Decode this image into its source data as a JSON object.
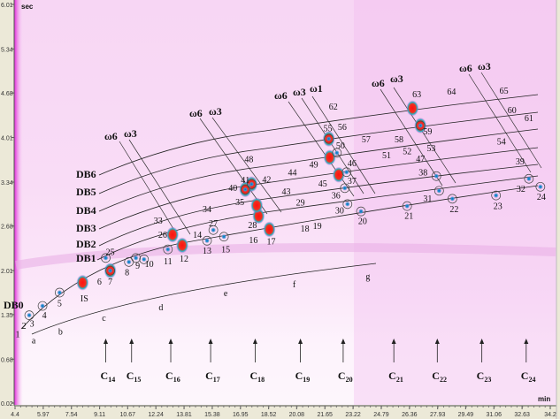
{
  "chart_data": {
    "type": "scatter",
    "title": "",
    "xlabel": "min",
    "ylabel": "sec",
    "xlim": [
      4.4,
      34.2
    ],
    "ylim": [
      0.02,
      6.01
    ],
    "x_ticks": [
      "4.4",
      "5.97",
      "7.54",
      "9.11",
      "10.67",
      "12.24",
      "13.81",
      "15.38",
      "16.95",
      "18.52",
      "20.08",
      "21.65",
      "23.22",
      "24.79",
      "26.36",
      "27.93",
      "29.49",
      "31.06",
      "32.63",
      "34.2"
    ],
    "y_ticks": [
      "6.01",
      "5.34",
      "4.68",
      "4.01",
      "3.34",
      "2.68",
      "2.01",
      "1.35",
      "0.68",
      "0.02"
    ],
    "peaks": [
      {
        "id": "1",
        "rt1": 4.55,
        "rt2": 1.06
      },
      {
        "id": "2",
        "rt1": 4.9,
        "rt2": 1.19
      },
      {
        "id": "3",
        "rt1": 5.34,
        "rt2": 1.22
      },
      {
        "id": "4",
        "rt1": 6.03,
        "rt2": 1.35
      },
      {
        "id": "5",
        "rt1": 6.88,
        "rt2": 1.53
      },
      {
        "id": "IS",
        "rt1": 8.26,
        "rt2": 1.6
      },
      {
        "id": "6",
        "rt1": 9.1,
        "rt2": 1.85
      },
      {
        "id": "7",
        "rt1": 9.7,
        "rt2": 1.85
      },
      {
        "id": "8",
        "rt1": 10.64,
        "rt2": 1.99
      },
      {
        "id": "9",
        "rt1": 11.23,
        "rt2": 2.09
      },
      {
        "id": "10",
        "rt1": 11.87,
        "rt2": 2.12
      },
      {
        "id": "11",
        "rt1": 12.91,
        "rt2": 2.16
      },
      {
        "id": "12",
        "rt1": 13.81,
        "rt2": 2.2
      },
      {
        "id": "13",
        "rt1": 15.09,
        "rt2": 2.32
      },
      {
        "id": "14",
        "rt1": 14.55,
        "rt2": 2.56
      },
      {
        "id": "15",
        "rt1": 16.13,
        "rt2": 2.34
      },
      {
        "id": "16",
        "rt1": 17.67,
        "rt2": 2.48
      },
      {
        "id": "17",
        "rt1": 18.66,
        "rt2": 2.46
      },
      {
        "id": "18",
        "rt1": 20.54,
        "rt2": 2.65
      },
      {
        "id": "19",
        "rt1": 21.23,
        "rt2": 2.69
      },
      {
        "id": "20",
        "rt1": 23.75,
        "rt2": 2.76
      },
      {
        "id": "21",
        "rt1": 26.33,
        "rt2": 2.84
      },
      {
        "id": "22",
        "rt1": 28.85,
        "rt2": 2.94
      },
      {
        "id": "23",
        "rt1": 31.28,
        "rt2": 2.99
      },
      {
        "id": "24",
        "rt1": 33.7,
        "rt2": 3.13
      },
      {
        "id": "25",
        "rt1": 9.7,
        "rt2": 2.3
      },
      {
        "id": "26",
        "rt1": 12.62,
        "rt2": 2.56
      },
      {
        "id": "27",
        "rt1": 15.44,
        "rt2": 2.73
      },
      {
        "id": "28",
        "rt1": 17.62,
        "rt2": 2.7
      },
      {
        "id": "29",
        "rt1": 20.29,
        "rt2": 3.04
      },
      {
        "id": "30",
        "rt1": 22.47,
        "rt2": 2.92
      },
      {
        "id": "31",
        "rt1": 27.37,
        "rt2": 3.1
      },
      {
        "id": "32",
        "rt1": 32.57,
        "rt2": 3.25
      },
      {
        "id": "33",
        "rt1": 12.37,
        "rt2": 2.77
      },
      {
        "id": "34",
        "rt1": 15.09,
        "rt2": 2.94
      },
      {
        "id": "35",
        "rt1": 16.92,
        "rt2": 3.05
      },
      {
        "id": "36",
        "rt1": 22.27,
        "rt2": 3.15
      },
      {
        "id": "37",
        "rt1": 23.16,
        "rt2": 3.37
      },
      {
        "id": "38",
        "rt1": 27.12,
        "rt2": 3.49
      },
      {
        "id": "39",
        "rt1": 32.52,
        "rt2": 3.66
      },
      {
        "id": "40",
        "rt1": 16.53,
        "rt2": 3.26
      },
      {
        "id": "41",
        "rt1": 17.22,
        "rt2": 3.38
      },
      {
        "id": "42",
        "rt1": 18.41,
        "rt2": 3.39
      },
      {
        "id": "43",
        "rt1": 19.5,
        "rt2": 3.21
      },
      {
        "id": "44",
        "rt1": 19.84,
        "rt2": 3.49
      },
      {
        "id": "45",
        "rt1": 21.53,
        "rt2": 3.33
      },
      {
        "id": "46",
        "rt1": 23.16,
        "rt2": 3.63
      },
      {
        "id": "47",
        "rt1": 26.97,
        "rt2": 3.7
      },
      {
        "id": "48",
        "rt1": 17.42,
        "rt2": 3.69
      },
      {
        "id": "49",
        "rt1": 21.03,
        "rt2": 3.61
      },
      {
        "id": "50",
        "rt1": 22.52,
        "rt2": 3.9
      },
      {
        "id": "51",
        "rt1": 25.09,
        "rt2": 3.75
      },
      {
        "id": "52",
        "rt1": 26.23,
        "rt2": 3.81
      },
      {
        "id": "53",
        "rt1": 27.57,
        "rt2": 3.86
      },
      {
        "id": "54",
        "rt1": 31.48,
        "rt2": 3.96
      },
      {
        "id": "55",
        "rt1": 21.82,
        "rt2": 4.16
      },
      {
        "id": "56",
        "rt1": 22.62,
        "rt2": 4.18
      },
      {
        "id": "57",
        "rt1": 23.95,
        "rt2": 3.99
      },
      {
        "id": "58",
        "rt1": 25.78,
        "rt2": 3.99
      },
      {
        "id": "59",
        "rt1": 27.37,
        "rt2": 4.11
      },
      {
        "id": "60",
        "rt1": 32.07,
        "rt2": 4.43
      },
      {
        "id": "61",
        "rt1": 33.01,
        "rt2": 4.31
      },
      {
        "id": "62",
        "rt1": 22.12,
        "rt2": 4.48
      },
      {
        "id": "63",
        "rt1": 26.77,
        "rt2": 4.67
      },
      {
        "id": "64",
        "rt1": 28.7,
        "rt2": 4.71
      },
      {
        "id": "65",
        "rt1": 31.62,
        "rt2": 4.72
      }
    ],
    "circled_markers": [
      [
        5.19,
        1.34
      ],
      [
        5.93,
        1.48
      ],
      [
        6.88,
        1.68
      ],
      [
        9.7,
        2.01
      ],
      [
        10.74,
        2.14
      ],
      [
        11.13,
        2.2
      ],
      [
        11.58,
        2.18
      ],
      [
        12.91,
        2.33
      ],
      [
        15.09,
        2.46
      ],
      [
        16.03,
        2.52
      ],
      [
        23.66,
        2.9
      ],
      [
        26.23,
        2.98
      ],
      [
        28.75,
        3.09
      ],
      [
        31.18,
        3.14
      ],
      [
        33.65,
        3.27
      ],
      [
        9.45,
        2.2
      ],
      [
        15.44,
        2.62
      ],
      [
        22.91,
        3.01
      ],
      [
        28.01,
        3.21
      ],
      [
        33.01,
        3.39
      ],
      [
        22.76,
        3.25
      ],
      [
        27.86,
        3.43
      ],
      [
        17.22,
        3.23
      ],
      [
        17.57,
        3.31
      ],
      [
        22.86,
        3.49
      ],
      [
        22.32,
        3.78
      ],
      [
        21.87,
        3.99
      ],
      [
        26.97,
        4.19
      ]
    ],
    "intense_spots": [
      [
        8.16,
        1.83
      ],
      [
        9.7,
        2.01
      ],
      [
        13.71,
        2.39
      ],
      [
        13.17,
        2.55
      ],
      [
        18.56,
        2.63
      ],
      [
        17.96,
        2.83
      ],
      [
        17.86,
        2.99
      ],
      [
        17.57,
        3.31
      ],
      [
        21.92,
        3.71
      ],
      [
        22.42,
        3.45
      ],
      [
        21.87,
        3.99
      ],
      [
        26.53,
        4.45
      ],
      [
        26.97,
        4.19
      ],
      [
        17.22,
        3.23
      ]
    ],
    "hydrocarbon_labels": [
      {
        "id": "a",
        "rt1": 5.44,
        "rt2": 0.97
      },
      {
        "id": "b",
        "rt1": 6.93,
        "rt2": 1.1
      },
      {
        "id": "c",
        "rt1": 9.35,
        "rt2": 1.31
      },
      {
        "id": "d",
        "rt1": 12.52,
        "rt2": 1.47
      },
      {
        "id": "e",
        "rt1": 16.13,
        "rt2": 1.68
      },
      {
        "id": "f",
        "rt1": 19.94,
        "rt2": 1.81
      },
      {
        "id": "g",
        "rt1": 24.05,
        "rt2": 1.93
      }
    ],
    "series_labels": [
      "DB0",
      "DB1",
      "DB2",
      "DB3",
      "DB4",
      "DB5",
      "DB6"
    ],
    "omega_labels": [
      "ω6",
      "ω3",
      "ω6",
      "ω3",
      "ω6",
      "ω3",
      "ω1",
      "ω6",
      "ω3",
      "ω6",
      "ω3"
    ],
    "alkane_markers": [
      {
        "label": "C",
        "sub": "14",
        "rt1": 9.45
      },
      {
        "label": "C",
        "sub": "15",
        "rt1": 10.89
      },
      {
        "label": "C",
        "sub": "16",
        "rt1": 13.07
      },
      {
        "label": "C",
        "sub": "17",
        "rt1": 15.29
      },
      {
        "label": "C",
        "sub": "18",
        "rt1": 17.77
      },
      {
        "label": "C",
        "sub": "19",
        "rt1": 20.29
      },
      {
        "label": "C",
        "sub": "20",
        "rt1": 22.67
      },
      {
        "label": "C",
        "sub": "21",
        "rt1": 25.49
      },
      {
        "label": "C",
        "sub": "22",
        "rt1": 27.91
      },
      {
        "label": "C",
        "sub": "23",
        "rt1": 30.39
      },
      {
        "label": "C",
        "sub": "24",
        "rt1": 32.86
      }
    ]
  },
  "colors": {
    "background": "#f6d2f3",
    "peak_hot": "#ff1a1a",
    "peak_mid": "#1fb8c8",
    "peak_low": "#2040d0",
    "axis": "#ece9d8"
  }
}
